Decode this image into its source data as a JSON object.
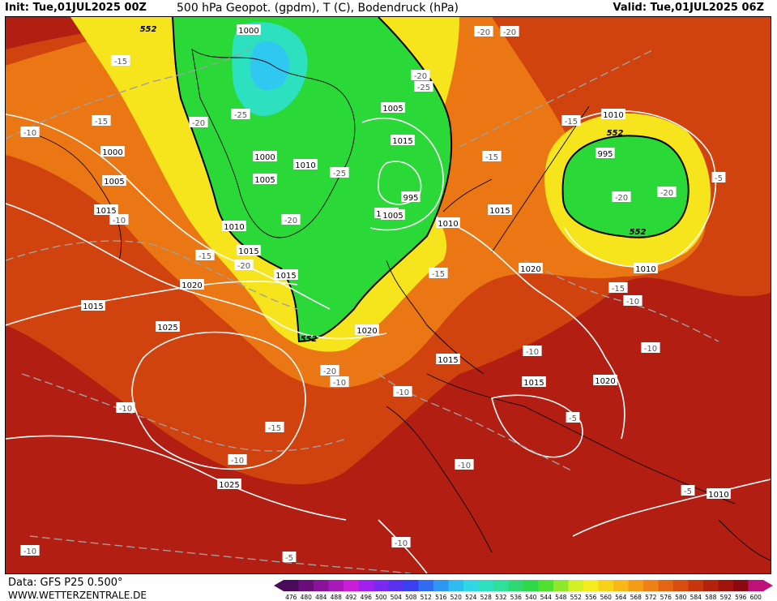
{
  "header": {
    "init": "Init: Tue,01JUL2025 00Z",
    "title": "500 hPa Geopot. (gpdm), T (C), Bodendruck (hPa)",
    "valid": "Valid: Tue,01JUL2025 06Z"
  },
  "footer": {
    "data_source": "Data: GFS P25 0.500°",
    "website": "WWW.WETTERZENTRALE.DE"
  },
  "legend": {
    "ticks": [
      "476",
      "480",
      "484",
      "488",
      "492",
      "496",
      "500",
      "504",
      "508",
      "512",
      "516",
      "520",
      "524",
      "528",
      "532",
      "536",
      "540",
      "544",
      "548",
      "552",
      "556",
      "560",
      "564",
      "568",
      "572",
      "576",
      "580",
      "584",
      "588",
      "592",
      "596",
      "600"
    ],
    "colors": [
      "#4a0a5a",
      "#6a0f7a",
      "#8a1499",
      "#a81ab8",
      "#c81fd6",
      "#a020f0",
      "#7a2af0",
      "#5a30f0",
      "#3a40f0",
      "#2f6cf0",
      "#2f96f0",
      "#2fbaf0",
      "#2fd6e6",
      "#2fe0c0",
      "#2fe09a",
      "#2fd870",
      "#2fd848",
      "#4fe030",
      "#90e82a",
      "#d4f024",
      "#f4ec1e",
      "#f8d21a",
      "#f8b818",
      "#f49c16",
      "#ee8014",
      "#e46412",
      "#d84c10",
      "#c8360e",
      "#b4220c",
      "#a0140c",
      "#8a0a10",
      "#c0107a"
    ]
  },
  "labels": {
    "geopot_552": [
      "552",
      "552",
      "552",
      "552"
    ],
    "pressure": [
      "1000",
      "1000",
      "1000",
      "1005",
      "1005",
      "1005",
      "1010",
      "1010",
      "1010",
      "1015",
      "1015",
      "1015",
      "1015",
      "1015",
      "1015",
      "1020",
      "1020",
      "1020",
      "1025",
      "1025",
      "995",
      "995",
      "1010",
      "1005",
      "1010",
      "1015",
      "1015",
      "1015",
      "1020",
      "1010"
    ],
    "temperature": [
      "-15",
      "-15",
      "-10",
      "-20",
      "-25",
      "-20",
      "-15",
      "-20",
      "-25",
      "-20",
      "-15",
      "-10",
      "-15",
      "-15",
      "-20",
      "-20",
      "-10",
      "-10",
      "-5",
      "-10",
      "-10",
      "-15",
      "-10",
      "-20",
      "-25",
      "-20",
      "-10",
      "-10",
      "-10",
      "-5",
      "-5",
      "-5",
      "-10",
      "-10",
      "-15",
      "-20"
    ]
  },
  "map_colors": {
    "warm_deep": "#b21e12",
    "warm_mid": "#d0420e",
    "orange": "#ea7614",
    "amber": "#f4a818",
    "yellow": "#f6e41c",
    "lime": "#c8ee28",
    "green": "#2ad838",
    "teal": "#2ce0c0",
    "cyan": "#2fc8f0",
    "isobar": "#ffffff",
    "isotherm": "#a0a0a0",
    "coast": "#000000"
  }
}
